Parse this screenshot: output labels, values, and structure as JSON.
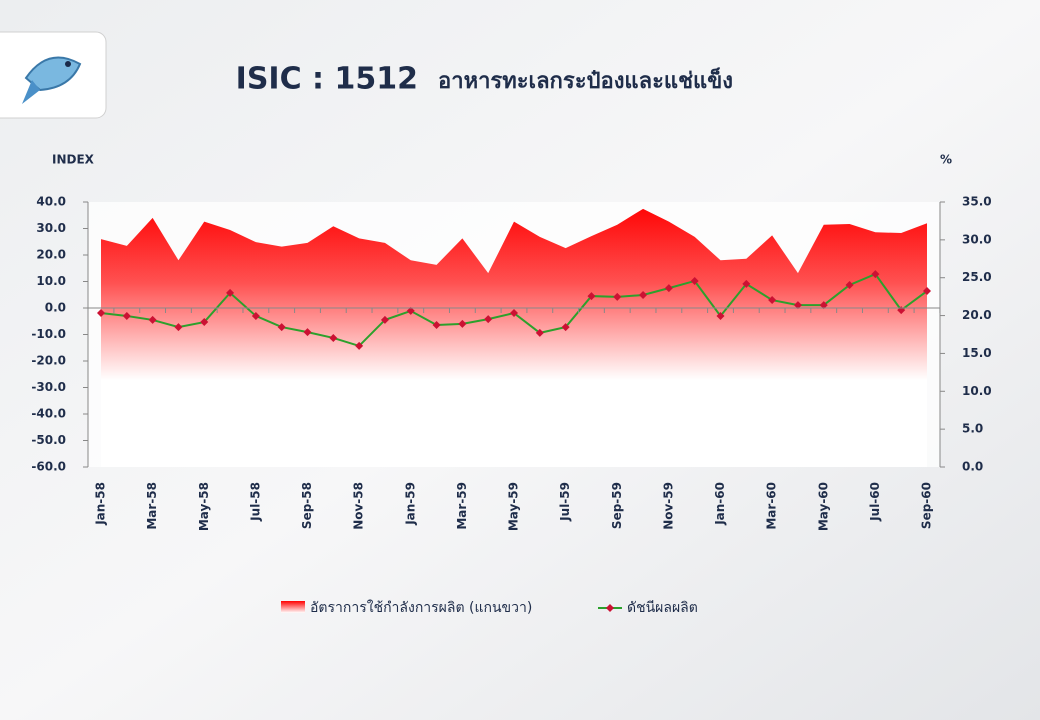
{
  "chart_data": {
    "type": "line",
    "title": "ISIC : 1512",
    "subtitle": "อาหารทะเลกระป๋องและแช่แข็ง",
    "y_label": "INDEX",
    "y2_label": "%",
    "categories": [
      "Jan-58",
      null,
      "Mar-58",
      null,
      "May-58",
      null,
      "Jul-58",
      null,
      "Sep-58",
      null,
      "Nov-58",
      null,
      "Jan-59",
      null,
      "Mar-59",
      null,
      "May-59",
      null,
      "Jul-59",
      null,
      "Sep-59",
      null,
      "Nov-59",
      null,
      "Jan-60",
      null,
      "Mar-60",
      null,
      "May-60",
      null,
      "Jul-60",
      null,
      "Sep-60"
    ],
    "series": [
      {
        "name": "อัตราการใช้กำลังการผลิต (แกนขวา)",
        "type": "area",
        "axis": "y2",
        "color": "#ff1a1a",
        "values": [
          30.1,
          29.2,
          32.9,
          27.3,
          32.4,
          31.3,
          29.7,
          29.1,
          29.6,
          31.8,
          30.2,
          29.6,
          27.3,
          26.7,
          30.2,
          25.6,
          32.4,
          30.4,
          28.9,
          30.5,
          32.0,
          34.1,
          32.4,
          30.4,
          27.3,
          27.5,
          30.6,
          25.6,
          32.0,
          32.1,
          31.0,
          30.9,
          32.2
        ]
      },
      {
        "name": "ดัชนีผลผลิต",
        "type": "line",
        "axis": "y",
        "color": "#2ca02c",
        "marker_color": "#cc1133",
        "values": [
          -1.9,
          -3.0,
          -4.5,
          -7.2,
          -5.3,
          5.7,
          -3.0,
          -7.2,
          -9.1,
          -11.3,
          -14.3,
          -4.5,
          -1.1,
          -6.4,
          -6.0,
          -4.2,
          -1.9,
          -9.4,
          -7.2,
          4.5,
          4.2,
          4.9,
          7.5,
          10.2,
          -3.0,
          9.1,
          3.0,
          1.1,
          1.1,
          8.7,
          12.8,
          -0.8,
          6.4
        ]
      }
    ],
    "ylim": [
      -60,
      40
    ],
    "yticks": [
      {
        "value": 40,
        "label": "40.0"
      },
      {
        "value": 30,
        "label": "30.0"
      },
      {
        "value": 20,
        "label": "20.0"
      },
      {
        "value": 10,
        "label": "10.0"
      },
      {
        "value": 0,
        "label": "0.0"
      },
      {
        "value": -10,
        "label": "-10.0"
      },
      {
        "value": -20,
        "label": "-20.0"
      },
      {
        "value": -30,
        "label": "-30.0"
      },
      {
        "value": -40,
        "label": "-40.0"
      },
      {
        "value": -50,
        "label": "-50.0"
      },
      {
        "value": -60,
        "label": "-60.0"
      }
    ],
    "y2lim": [
      0,
      35
    ],
    "y2ticks": [
      {
        "value": 35,
        "label": "35.0"
      },
      {
        "value": 30,
        "label": "30.0"
      },
      {
        "value": 25,
        "label": "25.0"
      },
      {
        "value": 20,
        "label": "20.0"
      },
      {
        "value": 15,
        "label": "15.0"
      },
      {
        "value": 10,
        "label": "10.0"
      },
      {
        "value": 5,
        "label": "5.0"
      },
      {
        "value": 0,
        "label": "0.0"
      }
    ],
    "legend": "bottom"
  }
}
